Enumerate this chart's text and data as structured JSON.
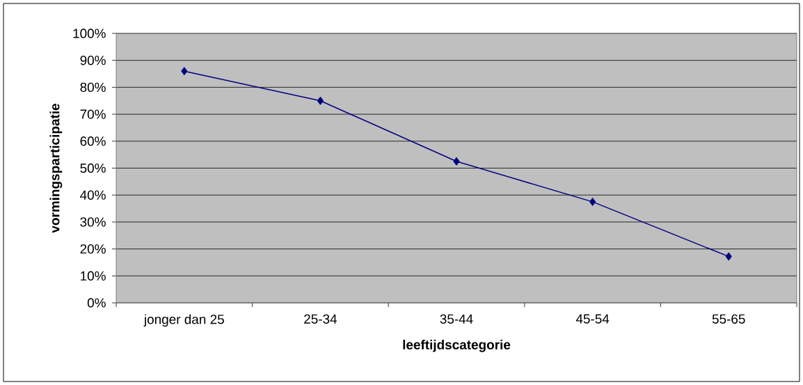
{
  "chart_data": {
    "type": "line",
    "xlabel": "leeftijdscategorie",
    "ylabel": "vormingsparticipatie",
    "categories": [
      "jonger dan 25",
      "25-34",
      "35-44",
      "45-54",
      "55-65"
    ],
    "values": [
      86,
      75,
      52.5,
      37.5,
      17.2
    ],
    "color": "#000080",
    "ylim": [
      0,
      100
    ],
    "yticks": [
      {
        "value": 0,
        "label": "0%"
      },
      {
        "value": 10,
        "label": "10%"
      },
      {
        "value": 20,
        "label": "20%"
      },
      {
        "value": 30,
        "label": "30%"
      },
      {
        "value": 40,
        "label": "40%"
      },
      {
        "value": 50,
        "label": "50%"
      },
      {
        "value": 60,
        "label": "60%"
      },
      {
        "value": 70,
        "label": "70%"
      },
      {
        "value": 80,
        "label": "80%"
      },
      {
        "value": 90,
        "label": "90%"
      },
      {
        "value": 100,
        "label": "100%"
      }
    ],
    "grid": "y",
    "marker": "diamond",
    "line_style": "solid"
  }
}
